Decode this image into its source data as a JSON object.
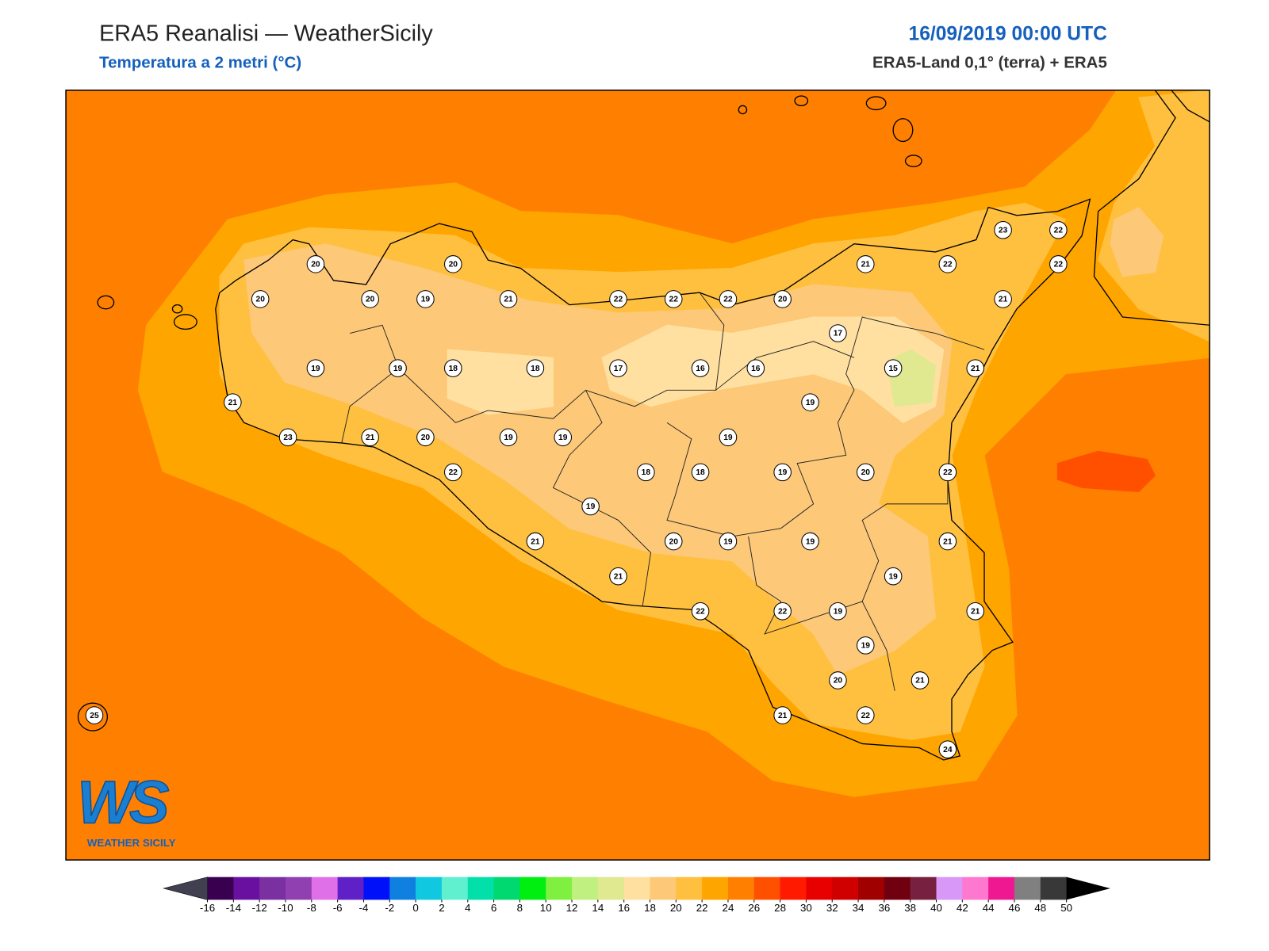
{
  "header": {
    "title": "ERA5 Reanalisi — WeatherSicily",
    "subtitle": "Temperatura a 2 metri (°C)",
    "date": "16/09/2019 00:00 UTC",
    "source": "ERA5-Land 0,1° (terra) + ERA5"
  },
  "stations": [
    20,
    20,
    20,
    20,
    19,
    21,
    22,
    22,
    22,
    20,
    21,
    22,
    23,
    22,
    22,
    21,
    17,
    19,
    19,
    18,
    18,
    17,
    16,
    16,
    15,
    21,
    19,
    21,
    23,
    21,
    20,
    19,
    19,
    19,
    22,
    18,
    18,
    19,
    20,
    22,
    19,
    21,
    20,
    19,
    19,
    21,
    21,
    19,
    22,
    22,
    19,
    21,
    19,
    20,
    21,
    21,
    22,
    24,
    25
  ],
  "colorbar": {
    "ticks": [
      -16,
      -14,
      -12,
      -10,
      -8,
      -6,
      -4,
      -2,
      0,
      2,
      4,
      6,
      8,
      10,
      12,
      14,
      16,
      18,
      20,
      22,
      24,
      26,
      28,
      30,
      32,
      34,
      36,
      38,
      40,
      42,
      44,
      46,
      48,
      50
    ],
    "colors": [
      "#3a0050",
      "#6a10a0",
      "#7a30a0",
      "#9040b0",
      "#e070e8",
      "#6020c8",
      "#0010f8",
      "#1080e0",
      "#10c8e0",
      "#60f0d0",
      "#00e0a8",
      "#00d870",
      "#00ee10",
      "#80f040",
      "#c0f080",
      "#e0e890",
      "#ffe0a0",
      "#fdc878",
      "#ffc040",
      "#ffa500",
      "#ff8000",
      "#ff5000",
      "#ff1a00",
      "#e80000",
      "#d00000",
      "#a00000",
      "#700010",
      "#782040",
      "#d898f8",
      "#ff78d0",
      "#f01890",
      "#808080",
      "#383838"
    ],
    "under_color": "#404050",
    "over_color": "#000000"
  },
  "logo": {
    "mark": "WS",
    "name": "WEATHER SICILY"
  }
}
